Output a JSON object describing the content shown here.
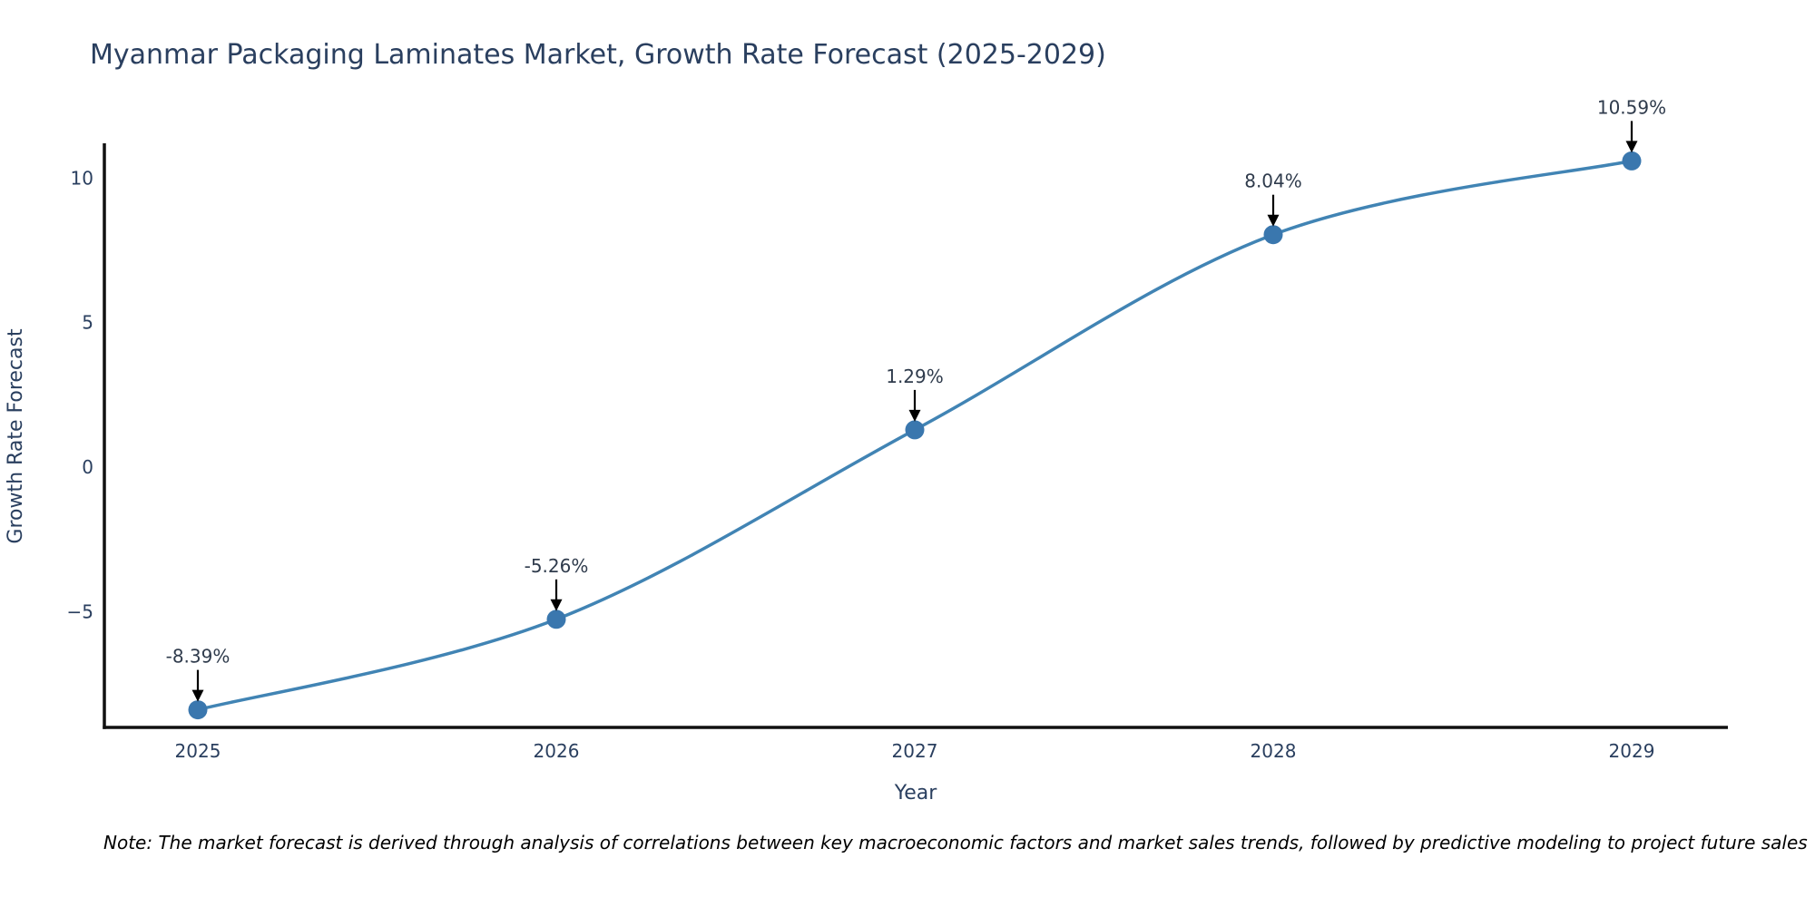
{
  "chart_data": {
    "type": "line",
    "title": "Myanmar Packaging Laminates Market, Growth Rate Forecast (2025-2029)",
    "xlabel": "Year",
    "ylabel": "Growth Rate Forecast",
    "categories": [
      "2025",
      "2026",
      "2027",
      "2028",
      "2029"
    ],
    "series": [
      {
        "name": "Growth Rate Forecast",
        "values": [
          -8.39,
          -5.26,
          1.29,
          8.04,
          10.59
        ]
      }
    ],
    "point_labels": [
      "-8.39%",
      "-5.26%",
      "1.29%",
      "8.04%",
      "10.59%"
    ],
    "ytick_values": [
      -5,
      0,
      5,
      10
    ],
    "ytick_labels": [
      "−5",
      "0",
      "5",
      "10"
    ],
    "ylim": [
      -9.0,
      11.2
    ],
    "line_shape": "spline",
    "grid": false,
    "legend": false,
    "note": "Note: The market forecast is derived through analysis of correlations between key macroeconomic factors and market sales trends, followed by predictive modeling to project future sales",
    "colors": {
      "line": "#4184b4",
      "marker": "#3a77ae",
      "axis": "#111111",
      "arrow": "#000000",
      "title_text": "#2a3f5f",
      "tick_text": "#2a3f5f",
      "annotation_text": "#2f3b4c",
      "note_text": "#000000",
      "background": "#ffffff"
    }
  }
}
